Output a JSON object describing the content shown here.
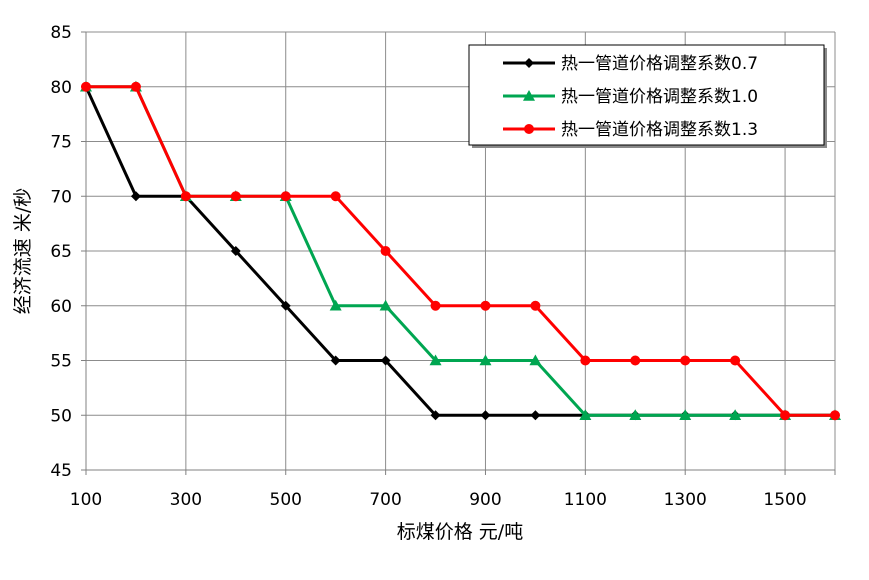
{
  "chart_data": {
    "type": "line",
    "title": "",
    "xlabel": "标煤价格  元/吨",
    "ylabel": "经济流速  米/秒",
    "xlim": [
      100,
      1600
    ],
    "ylim": [
      45,
      85
    ],
    "x_ticks": [
      "100",
      "300",
      "500",
      "700",
      "900",
      "1100",
      "1300",
      "1500"
    ],
    "x_tick_values": [
      100,
      300,
      500,
      700,
      900,
      1100,
      1300,
      1500
    ],
    "y_ticks": [
      "45",
      "50",
      "55",
      "60",
      "65",
      "70",
      "75",
      "80",
      "85"
    ],
    "y_tick_values": [
      45,
      50,
      55,
      60,
      65,
      70,
      75,
      80,
      85
    ],
    "x_gridline_values": [
      100,
      300,
      500,
      700,
      900,
      1100,
      1300,
      1500,
      1600
    ],
    "grid": true,
    "legend_position": "top-right",
    "x": [
      100,
      200,
      300,
      400,
      500,
      600,
      700,
      800,
      900,
      1000,
      1100,
      1200,
      1300,
      1400,
      1500,
      1600
    ],
    "series": [
      {
        "name": "热一管道价格调整系数0.7",
        "color": "#000000",
        "marker": "diamond",
        "values": [
          80,
          70,
          70,
          65,
          60,
          55,
          55,
          50,
          50,
          50,
          50,
          50,
          50,
          50,
          50,
          50
        ]
      },
      {
        "name": "热一管道价格调整系数1.0",
        "color": "#00a651",
        "marker": "triangle",
        "values": [
          80,
          80,
          70,
          70,
          70,
          60,
          60,
          55,
          55,
          55,
          50,
          50,
          50,
          50,
          50,
          50
        ]
      },
      {
        "name": "热一管道价格调整系数1.3",
        "color": "#ff0000",
        "marker": "circle",
        "values": [
          80,
          80,
          70,
          70,
          70,
          70,
          65,
          60,
          60,
          60,
          55,
          55,
          55,
          55,
          50,
          50
        ]
      }
    ]
  }
}
